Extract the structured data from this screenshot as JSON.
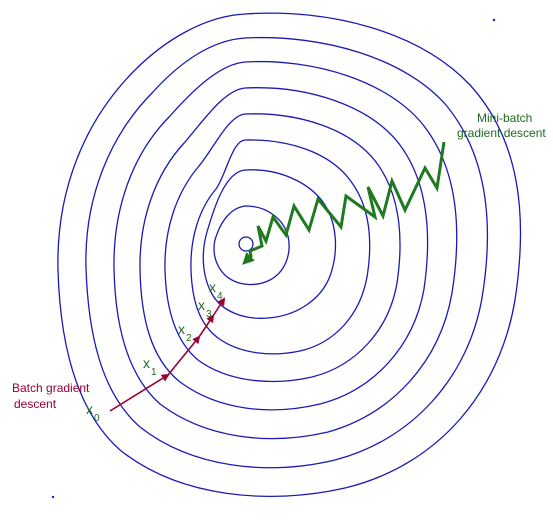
{
  "colors": {
    "contour": "#1a1ab8",
    "batch": "#990033",
    "mini_batch": "#1f7a1f",
    "background": "#ffffff"
  },
  "labels": {
    "batch_line1": "Batch gradient",
    "batch_line2": "descent",
    "mini_line1": "Mini-batch",
    "mini_line2": "gradient descent",
    "x_symbol": "x"
  },
  "iterates": [
    {
      "subscript": "0"
    },
    {
      "subscript": "1"
    },
    {
      "subscript": "2"
    },
    {
      "subscript": "3"
    },
    {
      "subscript": "4"
    }
  ]
}
